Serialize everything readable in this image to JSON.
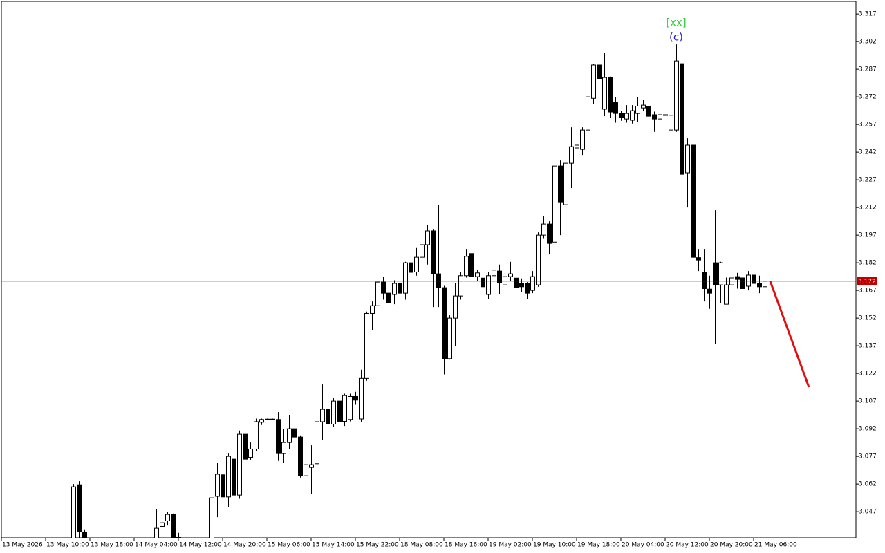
{
  "chart_data": {
    "type": "candlestick",
    "x": [
      13,
      14,
      15,
      28,
      29,
      30,
      31,
      32,
      38,
      39,
      40,
      41,
      42,
      43,
      44,
      45,
      46,
      47,
      48,
      49,
      50,
      51,
      52,
      53,
      54,
      55,
      56,
      57,
      58,
      59,
      60,
      61,
      62,
      63,
      64,
      65,
      66,
      67,
      68,
      69,
      70,
      71,
      72,
      73,
      74,
      75,
      76,
      77,
      78,
      79,
      80,
      81,
      82,
      83,
      84,
      85,
      86,
      87,
      88,
      89,
      90,
      91,
      92,
      93,
      94,
      95,
      96,
      97,
      98,
      99,
      100,
      101,
      102,
      103,
      104,
      105,
      106,
      107,
      108,
      109,
      110,
      111,
      112,
      113,
      114,
      115,
      116,
      117,
      118,
      119,
      120,
      121,
      122,
      123,
      124,
      125,
      126,
      127,
      128,
      129,
      130,
      131,
      132,
      133,
      134,
      135,
      136,
      137,
      138
    ],
    "open": [
      3.03,
      3.0616,
      3.036,
      3.03,
      3.039,
      3.042,
      3.0455,
      3.033,
      3.03,
      3.0553,
      3.067,
      3.055,
      3.0755,
      3.056,
      3.089,
      3.0765,
      3.081,
      3.0955,
      3.097,
      3.0972,
      3.097,
      3.0785,
      3.0845,
      3.092,
      3.0875,
      3.0665,
      3.071,
      3.073,
      3.0958,
      3.1025,
      3.0945,
      3.107,
      3.096,
      3.097,
      3.1095,
      3.0973,
      3.1193,
      3.1545,
      3.1587,
      3.1715,
      3.1655,
      3.1648,
      3.1708,
      3.1655,
      3.182,
      3.177,
      3.185,
      3.1918,
      3.1993,
      3.176,
      3.1685,
      3.13,
      3.152,
      3.164,
      3.175,
      3.187,
      3.1745,
      3.1737,
      3.1648,
      3.175,
      3.1775,
      3.17,
      3.1745,
      3.1737,
      3.1708,
      3.1708,
      3.167,
      3.17,
      3.197,
      3.203,
      3.1932,
      3.2345,
      3.2135,
      3.236,
      3.2443,
      3.2435,
      3.254,
      3.2712,
      3.2893,
      3.2653,
      3.2825,
      3.269,
      3.263,
      3.26,
      3.2593,
      3.263,
      3.266,
      3.2668,
      3.2623,
      3.26,
      3.2623,
      3.254,
      3.254,
      3.29,
      3.2308,
      3.2458,
      3.1848,
      3.1768,
      3.1677,
      3.182,
      3.17,
      3.1595,
      3.17,
      3.1745,
      3.1738,
      3.1693,
      3.1753,
      3.1708,
      3.169
    ],
    "high": [
      3.062,
      3.0635,
      3.037,
      3.0485,
      3.043,
      3.047,
      3.046,
      3.0355,
      3.0575,
      3.0733,
      3.0725,
      3.0785,
      3.078,
      3.091,
      3.0905,
      3.0845,
      3.0975,
      3.0975,
      3.0975,
      3.0975,
      3.101,
      3.092,
      3.0995,
      3.0995,
      3.088,
      3.0745,
      3.083,
      3.1205,
      3.116,
      3.105,
      3.1085,
      3.1175,
      3.111,
      3.111,
      3.112,
      3.124,
      3.1555,
      3.161,
      3.1775,
      3.1745,
      3.1665,
      3.1725,
      3.1725,
      3.1825,
      3.184,
      3.19,
      3.2025,
      3.2025,
      3.2,
      3.2135,
      3.1695,
      3.1535,
      3.171,
      3.177,
      3.1895,
      3.1885,
      3.178,
      3.175,
      3.177,
      3.1835,
      3.181,
      3.178,
      3.1825,
      3.1805,
      3.1735,
      3.1715,
      3.1775,
      3.1985,
      3.2075,
      3.2045,
      3.2405,
      3.2375,
      3.2495,
      3.2555,
      3.258,
      3.2555,
      3.2735,
      3.29,
      3.2895,
      3.296,
      3.283,
      3.272,
      3.2645,
      3.2675,
      3.2675,
      3.272,
      3.2705,
      3.2695,
      3.264,
      3.263,
      3.2625,
      3.263,
      3.3005,
      3.2905,
      3.2495,
      3.2495,
      3.1895,
      3.1895,
      3.175,
      3.2105,
      3.1825,
      3.174,
      3.1825,
      3.1765,
      3.1785,
      3.1775,
      3.1795,
      3.175,
      3.1835
    ],
    "low": [
      3.02,
      3.032,
      3.02,
      3.02,
      3.0358,
      3.0395,
      3.02,
      3.02,
      3.02,
      3.044,
      3.054,
      3.0493,
      3.0545,
      3.054,
      3.074,
      3.075,
      3.08,
      3.094,
      3.0968,
      3.0968,
      3.0745,
      3.0733,
      3.081,
      3.0855,
      3.0655,
      3.059,
      3.0568,
      3.0655,
      3.086,
      3.0598,
      3.093,
      3.0935,
      3.0935,
      3.096,
      3.105,
      3.0955,
      3.118,
      3.1455,
      3.1575,
      3.162,
      3.157,
      3.1595,
      3.1625,
      3.162,
      3.171,
      3.175,
      3.183,
      3.181,
      3.158,
      3.158,
      3.1215,
      3.1295,
      3.137,
      3.162,
      3.174,
      3.168,
      3.172,
      3.163,
      3.1625,
      3.1715,
      3.165,
      3.168,
      3.172,
      3.162,
      3.166,
      3.1625,
      3.1655,
      3.169,
      3.195,
      3.1865,
      3.1925,
      3.197,
      3.197,
      3.2225,
      3.2425,
      3.2405,
      3.2525,
      3.268,
      3.263,
      3.2615,
      3.2605,
      3.258,
      3.259,
      3.258,
      3.2575,
      3.2585,
      3.2645,
      3.258,
      3.253,
      3.259,
      3.2618,
      3.2465,
      3.253,
      3.2265,
      3.212,
      3.1805,
      3.1775,
      3.161,
      3.157,
      3.138,
      3.16,
      3.1595,
      3.163,
      3.168,
      3.1665,
      3.167,
      3.1665,
      3.1655,
      3.164
    ],
    "close": [
      3.0605,
      3.036,
      3.025,
      3.038,
      3.041,
      3.0455,
      3.025,
      3.025,
      3.0545,
      3.0673,
      3.055,
      3.077,
      3.056,
      3.089,
      3.0755,
      3.081,
      3.0958,
      3.097,
      3.0972,
      3.097,
      3.0785,
      3.0845,
      3.092,
      3.0875,
      3.0665,
      3.0725,
      3.0725,
      3.0958,
      3.1025,
      3.0945,
      3.107,
      3.096,
      3.11,
      3.1095,
      3.1075,
      3.1193,
      3.1545,
      3.1587,
      3.1715,
      3.1655,
      3.1603,
      3.1708,
      3.1655,
      3.182,
      3.1768,
      3.185,
      3.1918,
      3.1993,
      3.176,
      3.1685,
      3.13,
      3.152,
      3.164,
      3.175,
      3.1855,
      3.1745,
      3.1765,
      3.169,
      3.175,
      3.178,
      3.171,
      3.1745,
      3.176,
      3.1685,
      3.169,
      3.1655,
      3.1745,
      3.197,
      3.203,
      3.1925,
      3.2345,
      3.215,
      3.236,
      3.245,
      3.2458,
      3.254,
      3.272,
      3.2893,
      3.2818,
      3.2825,
      3.2638,
      3.263,
      3.2608,
      3.263,
      3.2645,
      3.267,
      3.2675,
      3.2615,
      3.26,
      3.2623,
      3.262,
      3.262,
      3.2915,
      3.23,
      3.2458,
      3.185,
      3.1835,
      3.168,
      3.1655,
      3.17,
      3.182,
      3.17,
      3.1738,
      3.173,
      3.168,
      3.1753,
      3.1708,
      3.169,
      3.172
    ],
    "up_color": "#ffffff",
    "down_color": "#000000",
    "outline_color": "#000000",
    "xlim": [
      0,
      154.5
    ],
    "ylim": [
      3.0328,
      3.3238
    ],
    "yticks": [
      3.047,
      3.062,
      3.077,
      3.092,
      3.107,
      3.122,
      3.137,
      3.152,
      3.167,
      3.182,
      3.197,
      3.212,
      3.227,
      3.242,
      3.257,
      3.272,
      3.287,
      3.302,
      3.317
    ],
    "xticks": [
      {
        "value": 0,
        "label": "13 May 2026"
      },
      {
        "value": 8,
        "label": "13 May 10:00"
      },
      {
        "value": 16,
        "label": "13 May 18:00"
      },
      {
        "value": 24,
        "label": "14 May 04:00"
      },
      {
        "value": 32,
        "label": "14 May 12:00"
      },
      {
        "value": 40,
        "label": "14 May 20:00"
      },
      {
        "value": 48,
        "label": "15 May 06:00"
      },
      {
        "value": 56,
        "label": "15 May 14:00"
      },
      {
        "value": 64,
        "label": "15 May 22:00"
      },
      {
        "value": 72,
        "label": "18 May 08:00"
      },
      {
        "value": 80,
        "label": "18 May 16:00"
      },
      {
        "value": 88,
        "label": "19 May 02:00"
      },
      {
        "value": 96,
        "label": "19 May 10:00"
      },
      {
        "value": 104,
        "label": "19 May 18:00"
      },
      {
        "value": 112,
        "label": "20 May 04:00"
      },
      {
        "value": 120,
        "label": "20 May 12:00"
      },
      {
        "value": 128,
        "label": "20 May 20:00"
      },
      {
        "value": 136,
        "label": "21 May 06:00"
      }
    ],
    "current_price": 3.172,
    "current_price_color": "#c00000",
    "projection": {
      "x": [
        139,
        146
      ],
      "values": [
        3.172,
        3.1145
      ],
      "color": "#e01010"
    },
    "annotations": [
      {
        "text": "[xx]",
        "color": "#33cc33",
        "x": 122
      },
      {
        "text": "(c)",
        "color": "#2222cc",
        "x": 122
      }
    ]
  }
}
